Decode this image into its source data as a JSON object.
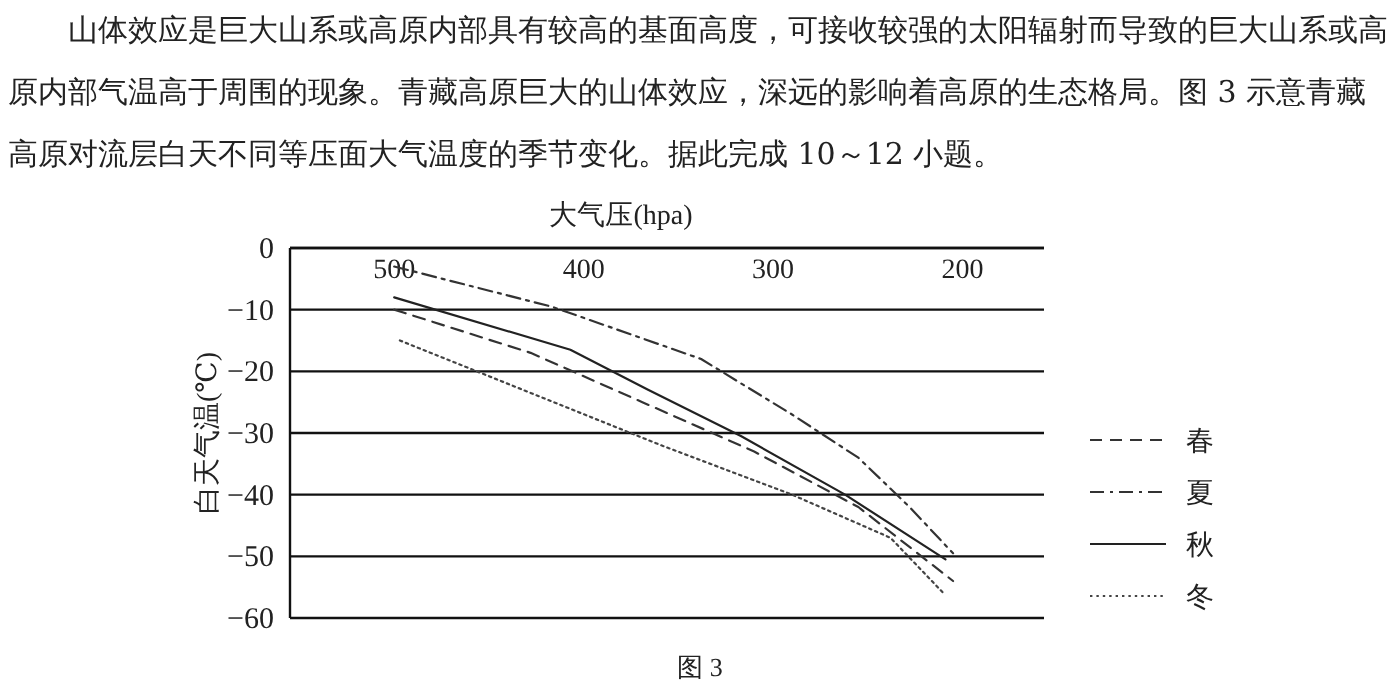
{
  "chart_data": {
    "type": "line",
    "annotations": [
      "山体效应是巨大山系或高原内部具有较高的基面高度，可接收较强的太阳辐射而导致的巨大山系或高原内部气温高于周围的现象。青藏高原巨大的山体效应，深远的影响着高原的生态格局。图 3 示意青藏高原对流层白天不同等压面大气温度的季节变化。据此完成 10～12 小题。",
      "图 3"
    ],
    "xlabel": "大气压(hpa)",
    "ylabel": "白天气温(℃)",
    "xlim": [
      555,
      157
    ],
    "xticks": [
      500,
      400,
      300,
      200
    ],
    "ylim": [
      -60,
      0
    ],
    "yticks": [
      0,
      -10,
      -20,
      -30,
      -40,
      -50,
      -60
    ],
    "grid": "y",
    "legend": "right",
    "series": [
      {
        "name": "春",
        "color": "#333333",
        "line_style": "dashed",
        "x": [
          500,
          428,
          369,
          310,
          255,
          205
        ],
        "values": [
          -10,
          -17,
          -25,
          -33,
          -42,
          -54
        ]
      },
      {
        "name": "夏",
        "color": "#333333",
        "line_style": "dashdot",
        "x": [
          500,
          417,
          338,
          290,
          255,
          228,
          205
        ],
        "values": [
          -3,
          -9.5,
          -18,
          -27,
          -34,
          -42,
          -49.5
        ]
      },
      {
        "name": "秋",
        "color": "#222222",
        "line_style": "solid",
        "x": [
          500,
          407,
          366,
          317,
          262,
          209
        ],
        "values": [
          -8,
          -16.5,
          -23,
          -30.5,
          -40,
          -50.5
        ]
      },
      {
        "name": "冬",
        "color": "#444444",
        "line_style": "dotted",
        "x": [
          497,
          428,
          359,
          290,
          238,
          210
        ],
        "values": [
          -15,
          -23.5,
          -32,
          -40,
          -47,
          -56
        ]
      }
    ]
  }
}
